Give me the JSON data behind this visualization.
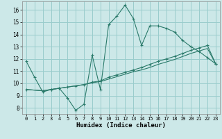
{
  "xlabel": "Humidex (Indice chaleur)",
  "bg_color": "#cce8e8",
  "grid_color": "#99cccc",
  "line_color": "#2a7a6a",
  "xlim": [
    -0.5,
    23.5
  ],
  "ylim": [
    7.5,
    16.7
  ],
  "yticks": [
    8,
    9,
    10,
    11,
    12,
    13,
    14,
    15,
    16
  ],
  "xticks": [
    0,
    1,
    2,
    3,
    4,
    5,
    6,
    7,
    8,
    9,
    10,
    11,
    12,
    13,
    14,
    15,
    16,
    17,
    18,
    19,
    20,
    21,
    22,
    23
  ],
  "line1_x": [
    0,
    1,
    2,
    3,
    4,
    5,
    6,
    7,
    8,
    9,
    10,
    11,
    12,
    13,
    14,
    15,
    16,
    17,
    18,
    19,
    20,
    21,
    22,
    23
  ],
  "line1_y": [
    11.8,
    10.5,
    9.3,
    9.5,
    9.6,
    8.8,
    7.8,
    8.3,
    12.3,
    9.5,
    14.8,
    15.5,
    16.4,
    15.3,
    13.1,
    14.7,
    14.7,
    14.5,
    14.2,
    13.5,
    13.0,
    12.6,
    12.1,
    11.6
  ],
  "line2_x": [
    0,
    2,
    3,
    4,
    5,
    6,
    7,
    8,
    9,
    10,
    11,
    12,
    13,
    14,
    15,
    16,
    17,
    18,
    19,
    20,
    21,
    22,
    23
  ],
  "line2_y": [
    9.5,
    9.4,
    9.5,
    9.6,
    9.7,
    9.8,
    9.9,
    10.1,
    10.2,
    10.5,
    10.7,
    10.9,
    11.1,
    11.3,
    11.55,
    11.8,
    12.0,
    12.2,
    12.45,
    12.7,
    12.9,
    13.1,
    11.6
  ],
  "line3_x": [
    0,
    2,
    3,
    4,
    5,
    6,
    7,
    8,
    9,
    10,
    11,
    12,
    13,
    14,
    15,
    16,
    17,
    18,
    19,
    20,
    21,
    22,
    23
  ],
  "line3_y": [
    9.5,
    9.4,
    9.5,
    9.6,
    9.7,
    9.8,
    9.9,
    10.05,
    10.15,
    10.35,
    10.55,
    10.75,
    10.95,
    11.1,
    11.3,
    11.55,
    11.75,
    11.95,
    12.2,
    12.45,
    12.65,
    12.85,
    11.6
  ]
}
